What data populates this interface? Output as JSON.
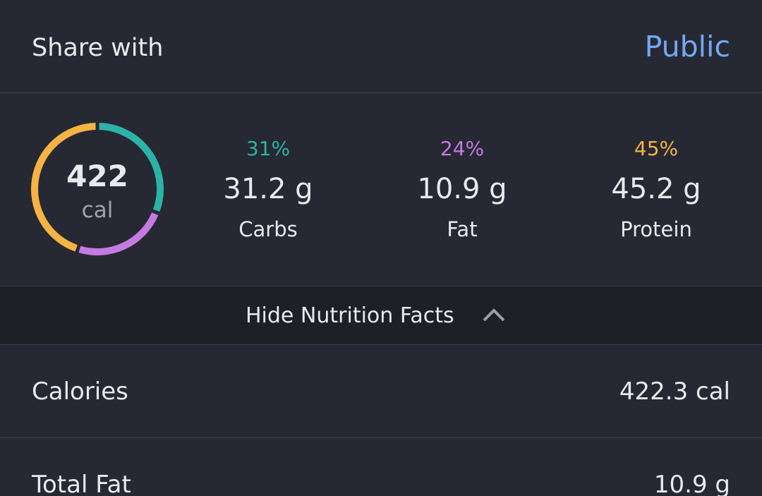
{
  "share": {
    "label": "Share with",
    "value": "Public"
  },
  "summary": {
    "calories": "422",
    "unit": "cal"
  },
  "macros": [
    {
      "percent": "31%",
      "amount": "31.2 g",
      "name": "Carbs",
      "color": "#2bb3a7"
    },
    {
      "percent": "24%",
      "amount": "10.9 g",
      "name": "Fat",
      "color": "#c47ae0"
    },
    {
      "percent": "45%",
      "amount": "45.2 g",
      "name": "Protein",
      "color": "#f5b343"
    }
  ],
  "toggle": "Hide Nutrition Facts",
  "facts": [
    {
      "label": "Calories",
      "value": "422.3 cal"
    },
    {
      "label": "Total Fat",
      "value": "10.9 g"
    }
  ]
}
